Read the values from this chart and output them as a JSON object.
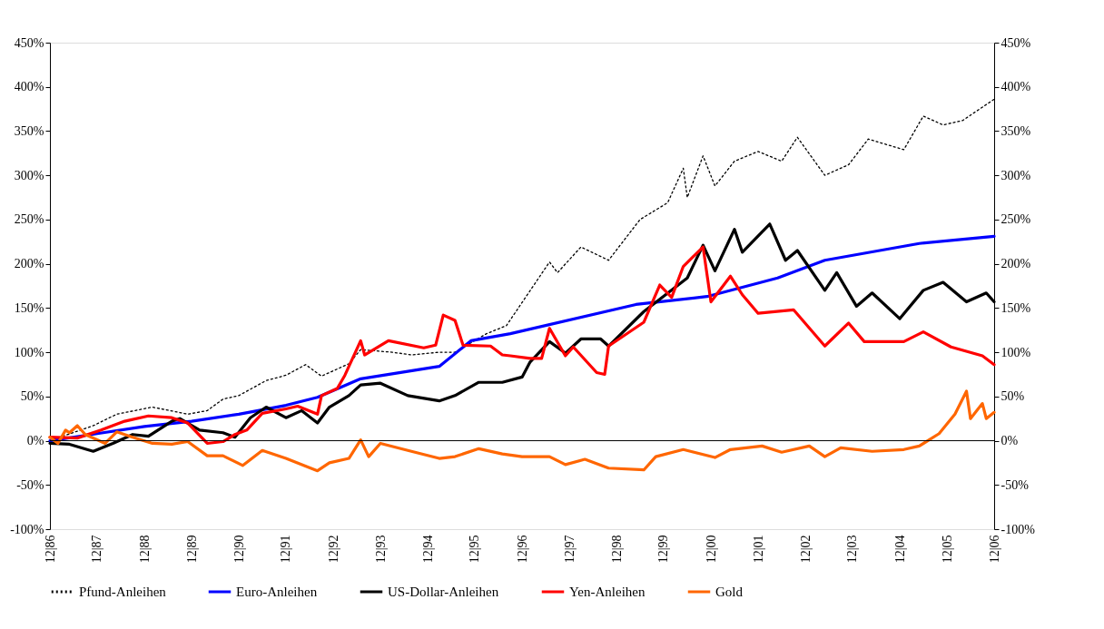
{
  "chart_data": {
    "type": "line",
    "legend": "bottom",
    "grid": false,
    "xlim": [
      "1986-12",
      "2006-12"
    ],
    "xticks": [
      {
        "value": "1986-12",
        "label": "12|86"
      },
      {
        "value": "1987-12",
        "label": "12|87"
      },
      {
        "value": "1988-12",
        "label": "12|88"
      },
      {
        "value": "1989-12",
        "label": "12|89"
      },
      {
        "value": "1990-12",
        "label": "12|90"
      },
      {
        "value": "1991-12",
        "label": "12|91"
      },
      {
        "value": "1992-12",
        "label": "12|92"
      },
      {
        "value": "1993-12",
        "label": "12|93"
      },
      {
        "value": "1994-12",
        "label": "12|94"
      },
      {
        "value": "1995-12",
        "label": "12|95"
      },
      {
        "value": "1996-12",
        "label": "12|96"
      },
      {
        "value": "1997-12",
        "label": "12|97"
      },
      {
        "value": "1998-12",
        "label": "12|98"
      },
      {
        "value": "1999-12",
        "label": "12|99"
      },
      {
        "value": "2000-12",
        "label": "12|00"
      },
      {
        "value": "2001-12",
        "label": "12|01"
      },
      {
        "value": "2002-12",
        "label": "12|02"
      },
      {
        "value": "2003-12",
        "label": "12|03"
      },
      {
        "value": "2004-12",
        "label": "12|04"
      },
      {
        "value": "2005-12",
        "label": "12|05"
      },
      {
        "value": "2006-12",
        "label": "12|06"
      }
    ],
    "ylim": [
      -100,
      450
    ],
    "yticks": [
      {
        "value": -100,
        "label": "-100%"
      },
      {
        "value": -50,
        "label": "-50%"
      },
      {
        "value": 0,
        "label": "0%"
      },
      {
        "value": 50,
        "label": "50%"
      },
      {
        "value": 100,
        "label": "100%"
      },
      {
        "value": 150,
        "label": "150%"
      },
      {
        "value": 200,
        "label": "200%"
      },
      {
        "value": 250,
        "label": "250%"
      },
      {
        "value": 300,
        "label": "300%"
      },
      {
        "value": 350,
        "label": "350%"
      },
      {
        "value": 400,
        "label": "400%"
      },
      {
        "value": 450,
        "label": "450%"
      }
    ],
    "y2lim": [
      -100,
      450
    ],
    "y2ticks": [
      {
        "value": -100,
        "label": "-100%"
      },
      {
        "value": -50,
        "label": "-50%"
      },
      {
        "value": 0,
        "label": "0%"
      },
      {
        "value": 50,
        "label": "50%"
      },
      {
        "value": 100,
        "label": "100%"
      },
      {
        "value": 150,
        "label": "150%"
      },
      {
        "value": 200,
        "label": "200%"
      },
      {
        "value": 250,
        "label": "250%"
      },
      {
        "value": 300,
        "label": "300%"
      },
      {
        "value": 350,
        "label": "350%"
      },
      {
        "value": 400,
        "label": "400%"
      },
      {
        "value": 450,
        "label": "450%"
      }
    ],
    "ref_lines": [
      {
        "axis": "y",
        "value": 0,
        "color": "#000000"
      }
    ],
    "series": [
      {
        "name": "Pfund-Anleihen",
        "color": "#000000",
        "line_style": "dotted",
        "x": [
          "1986-12",
          "1987-11",
          "1988-05",
          "1989-02",
          "1989-11",
          "1990-04",
          "1990-08",
          "1990-12",
          "1991-07",
          "1991-12",
          "1992-05",
          "1992-09",
          "1993-04",
          "1993-07",
          "1994-03",
          "1994-08",
          "1995-03",
          "1995-07",
          "1996-03",
          "1996-08",
          "1997-01",
          "1997-07",
          "1997-09",
          "1998-03",
          "1998-10",
          "1999-06",
          "2000-01",
          "2000-05",
          "2000-06",
          "2000-10",
          "2001-01",
          "2001-06",
          "2001-12",
          "2002-06",
          "2002-10",
          "2003-05",
          "2003-11",
          "2004-04",
          "2005-01",
          "2005-06",
          "2005-11",
          "2006-04",
          "2006-12"
        ],
        "values": [
          0,
          17,
          30,
          38,
          30,
          34,
          47,
          51,
          68,
          74,
          86,
          73,
          87,
          103,
          100,
          97,
          100,
          100,
          121,
          130,
          163,
          202,
          190,
          219,
          204,
          250,
          269,
          308,
          275,
          322,
          288,
          316,
          327,
          316,
          343,
          300,
          312,
          341,
          329,
          367,
          357,
          362,
          386
        ]
      },
      {
        "name": "Euro-Anleihen",
        "color": "#0000ff",
        "line_style": "solid",
        "x": [
          "1986-12",
          "1987-12",
          "1988-12",
          "1989-12",
          "1990-12",
          "1991-12",
          "1992-08",
          "1993-07",
          "1995-03",
          "1995-11",
          "1996-09",
          "1999-05",
          "2000-11",
          "2002-05",
          "2003-05",
          "2005-05",
          "2006-12"
        ],
        "values": [
          0,
          8,
          16,
          22,
          30,
          40,
          49,
          70,
          84,
          113,
          121,
          154,
          163,
          184,
          204,
          223,
          231
        ]
      },
      {
        "name": "US-Dollar-Anleihen",
        "color": "#000000",
        "line_style": "solid",
        "x": [
          "1986-12",
          "1987-05",
          "1987-11",
          "1988-04",
          "1988-09",
          "1989-01",
          "1989-07",
          "1989-09",
          "1990-02",
          "1990-08",
          "1990-11",
          "1991-03",
          "1991-07",
          "1991-12",
          "1992-04",
          "1992-08",
          "1992-11",
          "1993-04",
          "1993-07",
          "1993-12",
          "1994-07",
          "1995-03",
          "1995-07",
          "1996-01",
          "1996-07",
          "1996-12",
          "1997-02",
          "1997-07",
          "1997-11",
          "1998-03",
          "1998-08",
          "1998-10",
          "1999-07",
          "2000-06",
          "2000-10",
          "2001-01",
          "2001-06",
          "2001-08",
          "2002-03",
          "2002-07",
          "2002-10",
          "2003-05",
          "2003-08",
          "2004-01",
          "2004-05",
          "2004-12",
          "2005-06",
          "2005-11",
          "2006-05",
          "2006-10",
          "2006-12"
        ],
        "values": [
          -3,
          -4,
          -12,
          -3,
          7,
          5,
          22,
          25,
          12,
          9,
          4,
          26,
          38,
          26,
          34,
          20,
          38,
          51,
          63,
          65,
          51,
          45,
          51,
          66,
          66,
          72,
          89,
          112,
          99,
          115,
          115,
          107,
          146,
          184,
          221,
          192,
          239,
          213,
          245,
          204,
          215,
          170,
          190,
          152,
          167,
          138,
          170,
          179,
          157,
          167,
          157
        ]
      },
      {
        "name": "Yen-Anleihen",
        "color": "#ff0000",
        "line_style": "solid",
        "x": [
          "1986-12",
          "1987-07",
          "1988-01",
          "1988-07",
          "1989-01",
          "1989-07",
          "1989-11",
          "1990-04",
          "1990-08",
          "1990-11",
          "1991-02",
          "1991-06",
          "1991-12",
          "1992-03",
          "1992-08",
          "1992-09",
          "1993-01",
          "1993-03",
          "1993-07",
          "1993-08",
          "1994-02",
          "1994-11",
          "1995-02",
          "1995-04",
          "1995-07",
          "1995-09",
          "1996-04",
          "1996-07",
          "1996-09",
          "1997-02",
          "1997-05",
          "1997-07",
          "1997-11",
          "1998-01",
          "1998-07",
          "1998-09",
          "1998-10",
          "1999-07",
          "1999-11",
          "2000-02",
          "2000-05",
          "2000-10",
          "2000-12",
          "2001-05",
          "2001-08",
          "2001-12",
          "2002-09",
          "2003-05",
          "2003-11",
          "2004-03",
          "2005-01",
          "2005-06",
          "2006-01",
          "2006-09",
          "2006-12"
        ],
        "values": [
          4,
          3,
          12,
          22,
          28,
          26,
          20,
          -3,
          -1,
          7,
          12,
          31,
          36,
          39,
          30,
          51,
          59,
          74,
          113,
          97,
          113,
          105,
          108,
          142,
          136,
          108,
          107,
          97,
          96,
          93,
          93,
          127,
          96,
          106,
          77,
          75,
          107,
          134,
          176,
          162,
          197,
          219,
          157,
          186,
          165,
          144,
          148,
          107,
          133,
          112,
          112,
          123,
          106,
          96,
          86
        ]
      },
      {
        "name": "Gold",
        "color": "#ff6600",
        "line_style": "solid",
        "x": [
          "1986-12",
          "1987-02",
          "1987-04",
          "1987-05",
          "1987-07",
          "1987-09",
          "1988-02",
          "1988-05",
          "1988-09",
          "1989-02",
          "1989-07",
          "1989-11",
          "1990-04",
          "1990-08",
          "1991-01",
          "1991-06",
          "1991-12",
          "1992-08",
          "1992-11",
          "1993-04",
          "1993-07",
          "1993-09",
          "1993-12",
          "1994-07",
          "1995-03",
          "1995-07",
          "1996-01",
          "1996-07",
          "1996-12",
          "1997-07",
          "1997-11",
          "1998-04",
          "1998-10",
          "1999-07",
          "1999-10",
          "2000-05",
          "2001-01",
          "2001-05",
          "2002-01",
          "2002-06",
          "2003-01",
          "2003-05",
          "2003-09",
          "2004-05",
          "2005-01",
          "2005-05",
          "2005-10",
          "2006-02",
          "2006-05",
          "2006-06",
          "2006-09",
          "2006-10",
          "2006-12"
        ],
        "values": [
          4,
          -3,
          12,
          9,
          17,
          7,
          -3,
          10,
          4,
          -3,
          -4,
          -1,
          -17,
          -17,
          -28,
          -11,
          -20,
          -34,
          -25,
          -20,
          1,
          -18,
          -3,
          -11,
          -20,
          -18,
          -9,
          -15,
          -18,
          -18,
          -27,
          -21,
          -31,
          -33,
          -18,
          -10,
          -19,
          -10,
          -6,
          -13,
          -6,
          -18,
          -8,
          -12,
          -10,
          -6,
          8,
          30,
          56,
          25,
          42,
          25,
          32
        ]
      }
    ]
  }
}
